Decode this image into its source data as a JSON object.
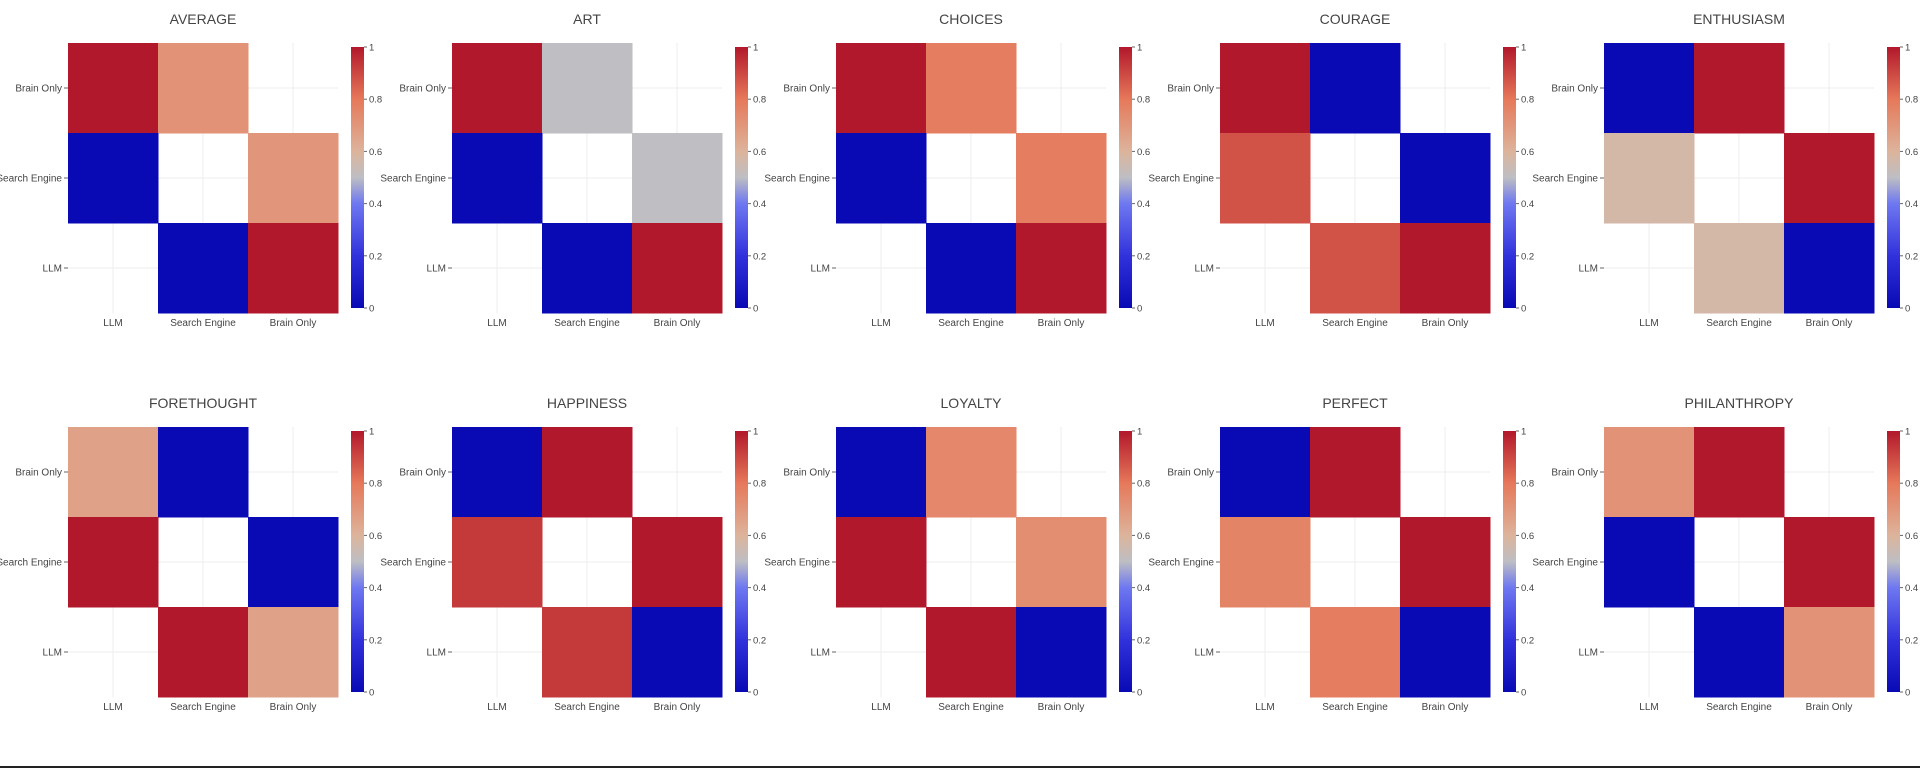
{
  "chart_data": [
    {
      "type": "heatmap",
      "title": "AVERAGE",
      "x": [
        "LLM",
        "Search Engine",
        "Brain Only"
      ],
      "y": [
        "Brain Only",
        "Search Engine",
        "LLM"
      ],
      "z": [
        [
          1.0,
          0.71,
          null
        ],
        [
          0.0,
          null,
          0.7
        ],
        [
          null,
          0.0,
          1.0
        ]
      ],
      "colorbar": {
        "range": [
          0,
          1
        ],
        "ticks": [
          "0",
          "0.2",
          "0.4",
          "0.6",
          "0.8",
          "1"
        ]
      }
    },
    {
      "type": "heatmap",
      "title": "ART",
      "x": [
        "LLM",
        "Search Engine",
        "Brain Only"
      ],
      "y": [
        "Brain Only",
        "Search Engine",
        "LLM"
      ],
      "z": [
        [
          1.0,
          0.5,
          null
        ],
        [
          0.0,
          null,
          0.5
        ],
        [
          null,
          0.0,
          1.0
        ]
      ],
      "colorbar": {
        "range": [
          0,
          1
        ],
        "ticks": [
          "0",
          "0.2",
          "0.4",
          "0.6",
          "0.8",
          "1"
        ]
      }
    },
    {
      "type": "heatmap",
      "title": "CHOICES",
      "x": [
        "LLM",
        "Search Engine",
        "Brain Only"
      ],
      "y": [
        "Brain Only",
        "Search Engine",
        "LLM"
      ],
      "z": [
        [
          1.0,
          0.78,
          null
        ],
        [
          0.0,
          null,
          0.78
        ],
        [
          null,
          0.0,
          1.0
        ]
      ],
      "colorbar": {
        "range": [
          0,
          1
        ],
        "ticks": [
          "0",
          "0.2",
          "0.4",
          "0.6",
          "0.8",
          "1"
        ]
      }
    },
    {
      "type": "heatmap",
      "title": "COURAGE",
      "x": [
        "LLM",
        "Search Engine",
        "Brain Only"
      ],
      "y": [
        "Brain Only",
        "Search Engine",
        "LLM"
      ],
      "z": [
        [
          1.0,
          0.0,
          null
        ],
        [
          0.88,
          null,
          0.0
        ],
        [
          null,
          0.88,
          1.0
        ]
      ],
      "colorbar": {
        "range": [
          0,
          1
        ],
        "ticks": [
          "0",
          "0.2",
          "0.4",
          "0.6",
          "0.8",
          "1"
        ]
      }
    },
    {
      "type": "heatmap",
      "title": "ENTHUSIASM",
      "x": [
        "LLM",
        "Search Engine",
        "Brain Only"
      ],
      "y": [
        "Brain Only",
        "Search Engine",
        "LLM"
      ],
      "z": [
        [
          0.0,
          1.0,
          null
        ],
        [
          0.57,
          null,
          1.0
        ],
        [
          null,
          0.57,
          0.0
        ]
      ],
      "colorbar": {
        "range": [
          0,
          1
        ],
        "ticks": [
          "0",
          "0.2",
          "0.4",
          "0.6",
          "0.8",
          "1"
        ]
      }
    },
    {
      "type": "heatmap",
      "title": "FORETHOUGHT",
      "x": [
        "LLM",
        "Search Engine",
        "Brain Only"
      ],
      "y": [
        "Brain Only",
        "Search Engine",
        "LLM"
      ],
      "z": [
        [
          0.66,
          0.0,
          null
        ],
        [
          1.0,
          null,
          0.0
        ],
        [
          null,
          1.0,
          0.66
        ]
      ],
      "colorbar": {
        "range": [
          0,
          1
        ],
        "ticks": [
          "0",
          "0.2",
          "0.4",
          "0.6",
          "0.8",
          "1"
        ]
      }
    },
    {
      "type": "heatmap",
      "title": "HAPPINESS",
      "x": [
        "LLM",
        "Search Engine",
        "Brain Only"
      ],
      "y": [
        "Brain Only",
        "Search Engine",
        "LLM"
      ],
      "z": [
        [
          0.0,
          1.0,
          null
        ],
        [
          0.93,
          null,
          1.0
        ],
        [
          null,
          0.93,
          0.0
        ]
      ],
      "colorbar": {
        "range": [
          0,
          1
        ],
        "ticks": [
          "0",
          "0.2",
          "0.4",
          "0.6",
          "0.8",
          "1"
        ]
      }
    },
    {
      "type": "heatmap",
      "title": "LOYALTY",
      "x": [
        "LLM",
        "Search Engine",
        "Brain Only"
      ],
      "y": [
        "Brain Only",
        "Search Engine",
        "LLM"
      ],
      "z": [
        [
          0.0,
          0.75,
          null
        ],
        [
          1.0,
          null,
          0.73
        ],
        [
          null,
          1.0,
          0.0
        ]
      ],
      "colorbar": {
        "range": [
          0,
          1
        ],
        "ticks": [
          "0",
          "0.2",
          "0.4",
          "0.6",
          "0.8",
          "1"
        ]
      }
    },
    {
      "type": "heatmap",
      "title": "PERFECT",
      "x": [
        "LLM",
        "Search Engine",
        "Brain Only"
      ],
      "y": [
        "Brain Only",
        "Search Engine",
        "LLM"
      ],
      "z": [
        [
          0.0,
          1.0,
          null
        ],
        [
          0.76,
          null,
          1.0
        ],
        [
          null,
          0.78,
          0.0
        ]
      ],
      "colorbar": {
        "range": [
          0,
          1
        ],
        "ticks": [
          "0",
          "0.2",
          "0.4",
          "0.6",
          "0.8",
          "1"
        ]
      }
    },
    {
      "type": "heatmap",
      "title": "PHILANTHROPY",
      "x": [
        "LLM",
        "Search Engine",
        "Brain Only"
      ],
      "y": [
        "Brain Only",
        "Search Engine",
        "LLM"
      ],
      "z": [
        [
          0.71,
          1.0,
          null
        ],
        [
          0.0,
          null,
          1.0
        ],
        [
          null,
          0.0,
          0.71
        ]
      ],
      "colorbar": {
        "range": [
          0,
          1
        ],
        "ticks": [
          "0",
          "0.2",
          "0.4",
          "0.6",
          "0.8",
          "1"
        ]
      }
    }
  ],
  "colorscale": [
    [
      0.0,
      "#0a0ab4"
    ],
    [
      0.2,
      "#3232dc"
    ],
    [
      0.4,
      "#6e78f0"
    ],
    [
      0.5,
      "#bebec3"
    ],
    [
      0.6,
      "#dcb49b"
    ],
    [
      0.8,
      "#e6785a"
    ],
    [
      1.0,
      "#b2182b"
    ]
  ],
  "null_cell_color": "#ffffff"
}
